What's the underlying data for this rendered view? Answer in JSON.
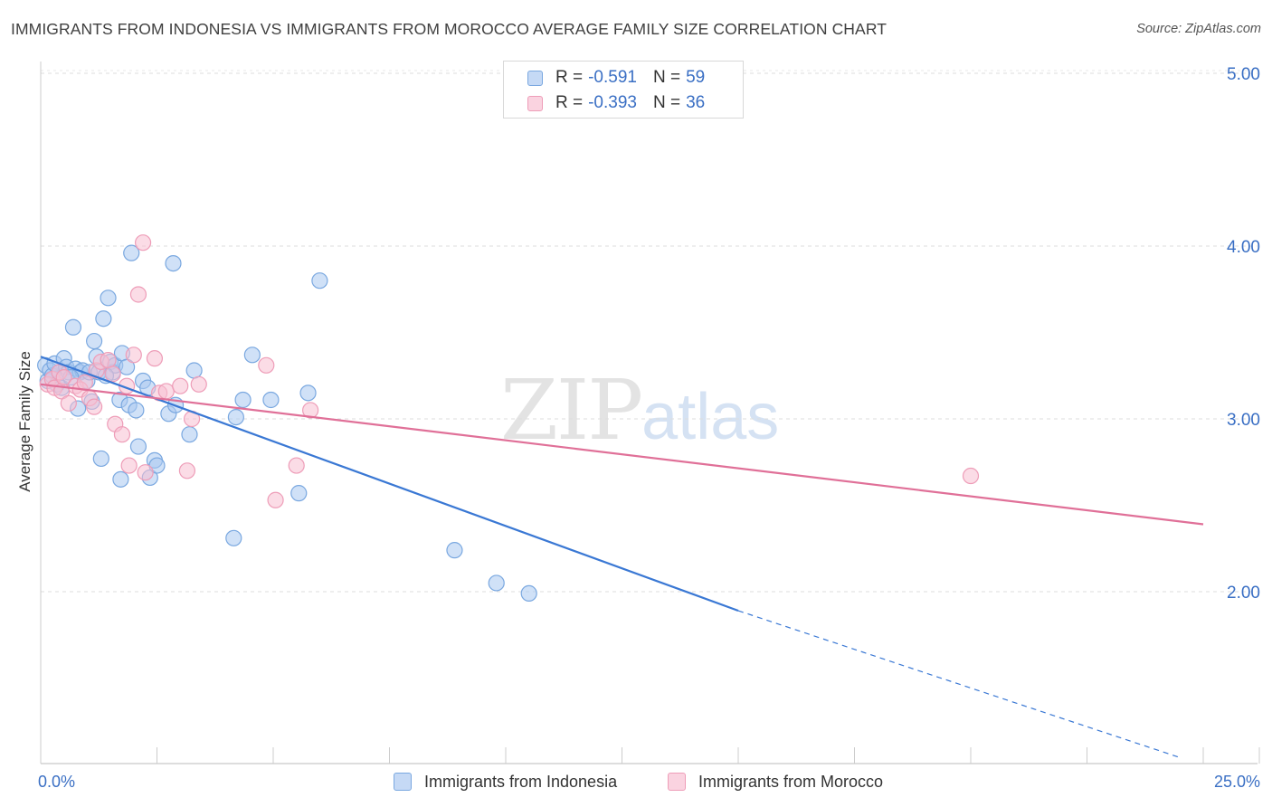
{
  "title": "IMMIGRANTS FROM INDONESIA VS IMMIGRANTS FROM MOROCCO AVERAGE FAMILY SIZE CORRELATION CHART",
  "source": "Source: ZipAtlas.com",
  "watermark": {
    "zip": "ZIP",
    "atlas": "atlas"
  },
  "legend": {
    "indonesia": {
      "r_label": "R =",
      "r_value": "-0.591",
      "n_label": "N =",
      "n_value": "59"
    },
    "morocco": {
      "r_label": "R =",
      "r_value": "-0.393",
      "n_label": "N =",
      "n_value": "36"
    }
  },
  "colors": {
    "indonesia_fill": "#a9c8f0",
    "indonesia_stroke": "#7aa8e0",
    "indonesia_line": "#3a78d4",
    "morocco_fill": "#f7c0d2",
    "morocco_stroke": "#ee9db8",
    "morocco_line": "#e07098",
    "axis_label": "#3a6fc4",
    "grid": "#dddddd"
  },
  "chart_data": {
    "type": "scatter",
    "title": "IMMIGRANTS FROM INDONESIA VS IMMIGRANTS FROM MOROCCO AVERAGE FAMILY SIZE CORRELATION CHART",
    "xlabel": "",
    "ylabel": "Average Family Size",
    "xlim": [
      0,
      25
    ],
    "ylim": [
      1.0,
      5.1
    ],
    "x_tick_labels": [
      "0.0%",
      "25.0%"
    ],
    "y_ticks": [
      2.0,
      3.0,
      4.0,
      5.0
    ],
    "y_tick_labels": [
      "2.00",
      "3.00",
      "4.00",
      "5.00"
    ],
    "grid": true,
    "series": [
      {
        "name": "Immigrants from Indonesia",
        "points": [
          [
            0.1,
            3.31
          ],
          [
            0.15,
            3.22
          ],
          [
            0.2,
            3.28
          ],
          [
            0.25,
            3.25
          ],
          [
            0.3,
            3.32
          ],
          [
            0.35,
            3.2
          ],
          [
            0.4,
            3.27
          ],
          [
            0.5,
            3.35
          ],
          [
            0.55,
            3.3
          ],
          [
            0.6,
            3.27
          ],
          [
            0.7,
            3.53
          ],
          [
            0.75,
            3.29
          ],
          [
            0.8,
            3.06
          ],
          [
            0.85,
            3.27
          ],
          [
            0.9,
            3.28
          ],
          [
            1.0,
            3.22
          ],
          [
            1.05,
            3.27
          ],
          [
            1.1,
            3.1
          ],
          [
            1.15,
            3.45
          ],
          [
            1.2,
            3.36
          ],
          [
            1.25,
            3.27
          ],
          [
            1.3,
            2.77
          ],
          [
            1.35,
            3.58
          ],
          [
            1.45,
            3.7
          ],
          [
            1.5,
            3.33
          ],
          [
            1.55,
            3.27
          ],
          [
            1.6,
            3.31
          ],
          [
            1.7,
            3.11
          ],
          [
            1.72,
            2.65
          ],
          [
            1.75,
            3.38
          ],
          [
            1.85,
            3.3
          ],
          [
            1.9,
            3.08
          ],
          [
            1.95,
            3.96
          ],
          [
            2.05,
            3.05
          ],
          [
            2.1,
            2.84
          ],
          [
            2.2,
            3.22
          ],
          [
            2.3,
            3.18
          ],
          [
            2.35,
            2.66
          ],
          [
            2.45,
            2.76
          ],
          [
            2.5,
            2.73
          ],
          [
            2.75,
            3.03
          ],
          [
            2.85,
            3.9
          ],
          [
            3.2,
            2.91
          ],
          [
            3.3,
            3.28
          ],
          [
            4.15,
            2.31
          ],
          [
            4.2,
            3.01
          ],
          [
            4.35,
            3.11
          ],
          [
            4.55,
            3.37
          ],
          [
            4.95,
            3.11
          ],
          [
            5.55,
            2.57
          ],
          [
            5.75,
            3.15
          ],
          [
            6.0,
            3.8
          ],
          [
            8.9,
            2.24
          ],
          [
            9.8,
            2.05
          ],
          [
            10.5,
            1.99
          ],
          [
            0.45,
            3.18
          ],
          [
            0.65,
            3.24
          ],
          [
            1.4,
            3.25
          ],
          [
            2.9,
            3.08
          ]
        ],
        "trend": {
          "x": [
            0,
            15
          ],
          "y": [
            3.36,
            1.89
          ],
          "dashed_to": [
            24.5,
            1.04
          ]
        }
      },
      {
        "name": "Immigrants from Morocco",
        "points": [
          [
            0.15,
            3.2
          ],
          [
            0.25,
            3.23
          ],
          [
            0.3,
            3.18
          ],
          [
            0.4,
            3.27
          ],
          [
            0.45,
            3.16
          ],
          [
            0.5,
            3.24
          ],
          [
            0.6,
            3.09
          ],
          [
            0.75,
            3.19
          ],
          [
            0.85,
            3.17
          ],
          [
            0.95,
            3.21
          ],
          [
            1.05,
            3.12
          ],
          [
            1.15,
            3.07
          ],
          [
            1.2,
            3.28
          ],
          [
            1.3,
            3.33
          ],
          [
            1.45,
            3.34
          ],
          [
            1.55,
            3.26
          ],
          [
            1.6,
            2.97
          ],
          [
            1.75,
            2.91
          ],
          [
            1.85,
            3.19
          ],
          [
            1.9,
            2.73
          ],
          [
            2.0,
            3.37
          ],
          [
            2.1,
            3.72
          ],
          [
            2.2,
            4.02
          ],
          [
            2.25,
            2.69
          ],
          [
            2.45,
            3.35
          ],
          [
            2.55,
            3.15
          ],
          [
            2.7,
            3.16
          ],
          [
            3.0,
            3.19
          ],
          [
            3.15,
            2.7
          ],
          [
            3.25,
            3.0
          ],
          [
            3.4,
            3.2
          ],
          [
            4.85,
            3.31
          ],
          [
            5.05,
            2.53
          ],
          [
            5.5,
            2.73
          ],
          [
            5.8,
            3.05
          ],
          [
            20.0,
            2.67
          ]
        ],
        "trend": {
          "x": [
            0,
            25
          ],
          "y": [
            3.2,
            2.39
          ]
        }
      }
    ]
  }
}
